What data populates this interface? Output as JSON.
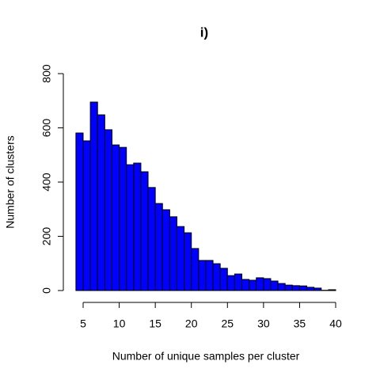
{
  "chart_data": {
    "type": "histogram",
    "title": "i)",
    "x_label": "Number of unique samples per cluster",
    "y_label": "Number of clusters",
    "bins": [
      4,
      5,
      6,
      7,
      8,
      9,
      10,
      11,
      12,
      13,
      14,
      15,
      16,
      17,
      18,
      19,
      20,
      21,
      22,
      23,
      24,
      25,
      26,
      27,
      28,
      29,
      30,
      31,
      32,
      33,
      34,
      35,
      36,
      37,
      38,
      39,
      40
    ],
    "counts": [
      581,
      552,
      695,
      648,
      593,
      537,
      528,
      464,
      470,
      438,
      380,
      321,
      298,
      272,
      236,
      213,
      155,
      111,
      111,
      99,
      82,
      55,
      61,
      41,
      38,
      47,
      44,
      35,
      26,
      20,
      18,
      17,
      12,
      9,
      1,
      3
    ],
    "color": "#0000ff",
    "xlim": [
      4,
      40
    ],
    "xticks": [
      5,
      10,
      15,
      20,
      25,
      30,
      35,
      40
    ],
    "ylim": [
      0,
      800
    ],
    "yticks": [
      0,
      200,
      400,
      600,
      800
    ]
  }
}
